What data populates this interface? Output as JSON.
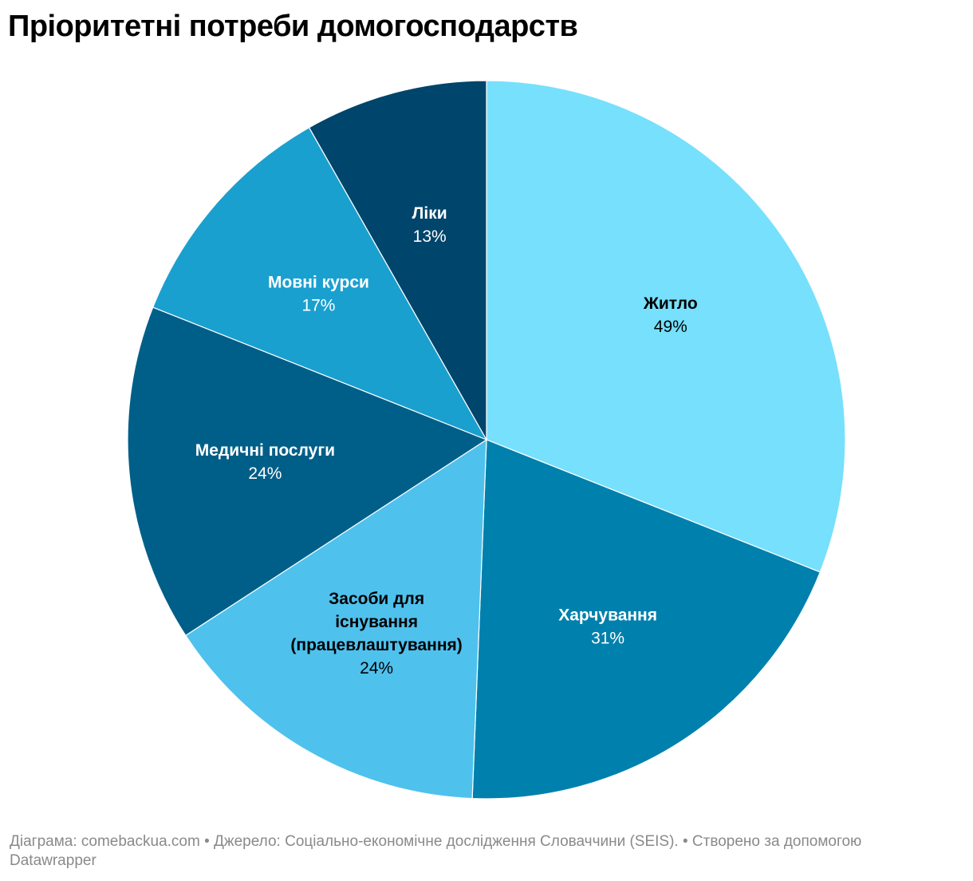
{
  "title": "Пріоритетні потреби домогосподарств",
  "footer": {
    "credit": "Діаграма: comebackua.com",
    "separator": "•",
    "source": "Джерело: Соціально-економічне дослідження Словаччини (SEIS).",
    "created": "Створено за допомогою Datawrapper"
  },
  "chart_data": {
    "type": "pie",
    "title": "Пріоритетні потреби домогосподарств",
    "unit": "%",
    "slices": [
      {
        "label": "Житло",
        "value": 49,
        "display": "49%",
        "color": "#76e0fd",
        "text_color": "#000000"
      },
      {
        "label": "Харчування",
        "value": 31,
        "display": "31%",
        "color": "#0080ad",
        "text_color": "#ffffff"
      },
      {
        "label": "Засоби для існування (працевлаштування)",
        "label_lines": [
          "Засоби для",
          "існування",
          "(працевлаштування)"
        ],
        "value": 24,
        "display": "24%",
        "color": "#4fc1ed",
        "text_color": "#000000"
      },
      {
        "label": "Медичні послуги",
        "value": 24,
        "display": "24%",
        "color": "#005f88",
        "text_color": "#ffffff"
      },
      {
        "label": "Мовні курси",
        "value": 17,
        "display": "17%",
        "color": "#1aa0cf",
        "text_color": "#ffffff"
      },
      {
        "label": "Ліки",
        "value": 13,
        "display": "13%",
        "color": "#00456b",
        "text_color": "#ffffff"
      }
    ]
  }
}
